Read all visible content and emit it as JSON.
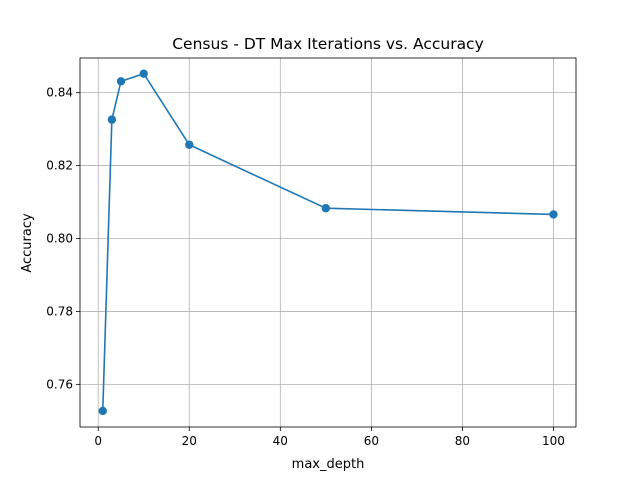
{
  "chart_data": {
    "type": "line",
    "title": "Census - DT Max Iterations vs. Accuracy",
    "xlabel": "max_depth",
    "ylabel": "Accuracy",
    "xlim": [
      -4.0,
      104.95
    ],
    "ylim": [
      0.7483,
      0.8495
    ],
    "xticks": [
      0,
      20,
      40,
      60,
      80,
      100
    ],
    "yticks": [
      0.76,
      0.78,
      0.8,
      0.82,
      0.84
    ],
    "ytick_labels": [
      "0.76",
      "0.78",
      "0.80",
      "0.82",
      "0.84"
    ],
    "grid": true,
    "marker": "circle",
    "colors": {
      "series": "#1f77b4"
    },
    "series": [
      {
        "x": [
          1,
          3,
          5,
          10,
          20,
          50,
          100
        ],
        "values": [
          0.7527,
          0.8326,
          0.8431,
          0.8452,
          0.8257,
          0.8083,
          0.8066
        ]
      }
    ]
  }
}
